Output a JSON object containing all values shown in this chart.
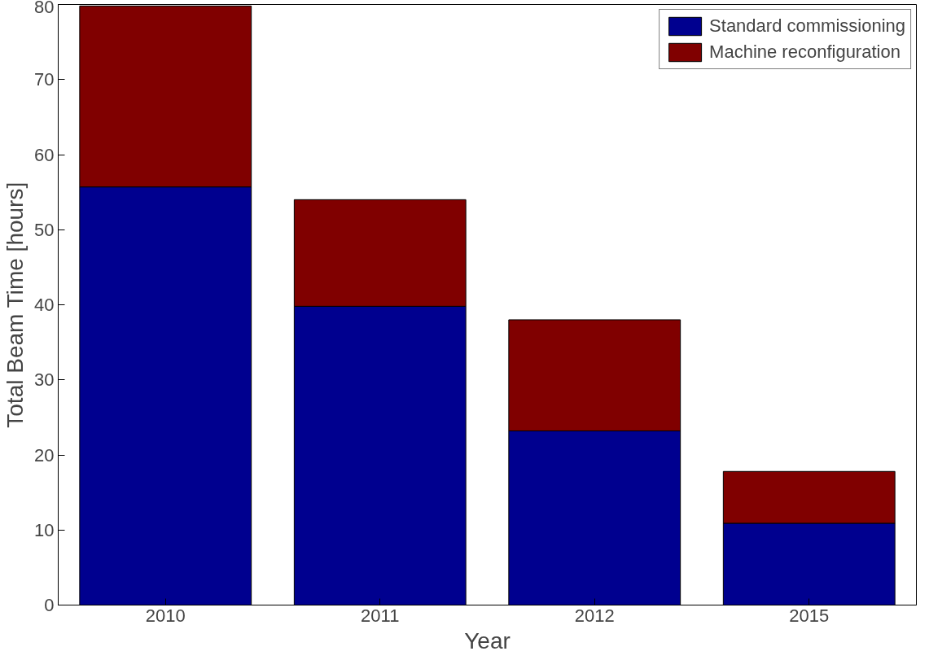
{
  "chart_data": {
    "type": "bar",
    "stacked": true,
    "xlabel": "Year",
    "ylabel": "Total Beam Time [hours]",
    "categories": [
      "2010",
      "2011",
      "2012",
      "2015"
    ],
    "series": [
      {
        "name": "Standard commissioning",
        "color": "#00008f",
        "values": [
          55.7,
          39.8,
          23.2,
          10.9
        ]
      },
      {
        "name": "Machine reconfiguration",
        "color": "#800000",
        "values": [
          24.1,
          14.2,
          14.8,
          6.9
        ]
      }
    ],
    "ylim": [
      0,
      80
    ],
    "yticks": [
      0,
      10,
      20,
      30,
      40,
      50,
      60,
      70,
      80
    ],
    "grid": false,
    "legend": "top right"
  }
}
